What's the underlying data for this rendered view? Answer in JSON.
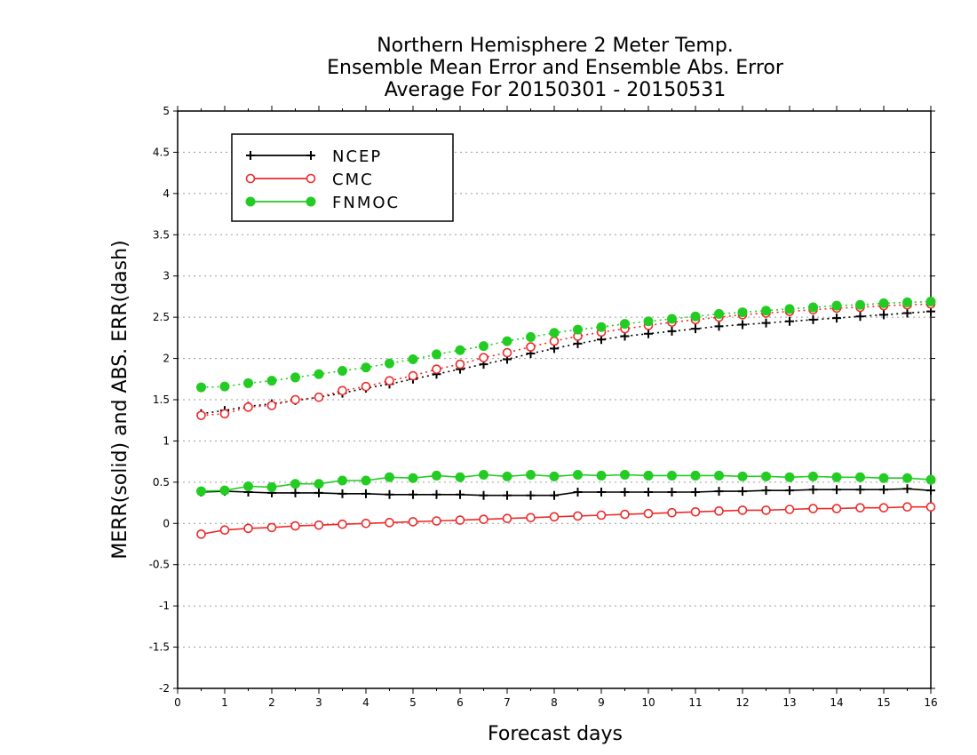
{
  "chart_data": {
    "type": "line",
    "title_lines": [
      "Northern Hemisphere 2 Meter Temp.",
      "Ensemble Mean Error and Ensemble Abs. Error",
      "Average For 20150301 - 20150531"
    ],
    "xlabel": "Forecast days",
    "ylabel": "MERR(solid) and ABS. ERR(dash)",
    "xlim": [
      0,
      16
    ],
    "ylim": [
      -2,
      5
    ],
    "xticks": [
      "0",
      "1",
      "2",
      "3",
      "4",
      "5",
      "6",
      "7",
      "8",
      "9",
      "10",
      "11",
      "12",
      "13",
      "14",
      "15",
      "16"
    ],
    "yticks": [
      "5",
      "4.5",
      "4",
      "3.5",
      "3",
      "2.5",
      "2",
      "1.5",
      "1",
      "0.5",
      "0",
      "-0.5",
      "-1",
      "-1.5",
      "-2"
    ],
    "grid": "horizontal dotted",
    "legend_position": "top-left",
    "x": [
      0.5,
      1,
      1.5,
      2,
      2.5,
      3,
      3.5,
      4,
      4.5,
      5,
      5.5,
      6,
      6.5,
      7,
      7.5,
      8,
      8.5,
      9,
      9.5,
      10,
      10.5,
      11,
      11.5,
      12,
      12.5,
      13,
      13.5,
      14,
      14.5,
      15,
      15.5,
      16
    ],
    "series": [
      {
        "name": "NCEP",
        "color": "#000000",
        "marker": "plus",
        "mean_error": [
          0.38,
          0.39,
          0.38,
          0.37,
          0.37,
          0.37,
          0.36,
          0.36,
          0.35,
          0.35,
          0.35,
          0.35,
          0.34,
          0.34,
          0.34,
          0.34,
          0.38,
          0.38,
          0.38,
          0.38,
          0.38,
          0.38,
          0.39,
          0.39,
          0.4,
          0.4,
          0.41,
          0.41,
          0.41,
          0.41,
          0.42,
          0.4
        ],
        "abs_error": [
          1.33,
          1.37,
          1.42,
          1.45,
          1.49,
          1.53,
          1.58,
          1.64,
          1.69,
          1.75,
          1.81,
          1.87,
          1.93,
          1.99,
          2.06,
          2.12,
          2.18,
          2.23,
          2.27,
          2.3,
          2.33,
          2.36,
          2.39,
          2.41,
          2.43,
          2.45,
          2.47,
          2.49,
          2.51,
          2.53,
          2.55,
          2.57
        ]
      },
      {
        "name": "CMC",
        "color": "#ee2a2a",
        "marker": "open-circle",
        "mean_error": [
          -0.13,
          -0.08,
          -0.06,
          -0.05,
          -0.03,
          -0.02,
          -0.01,
          0.0,
          0.01,
          0.02,
          0.03,
          0.04,
          0.05,
          0.06,
          0.07,
          0.08,
          0.09,
          0.1,
          0.11,
          0.12,
          0.13,
          0.14,
          0.15,
          0.16,
          0.16,
          0.17,
          0.18,
          0.18,
          0.19,
          0.19,
          0.2,
          0.2
        ],
        "abs_error": [
          1.31,
          1.33,
          1.41,
          1.43,
          1.5,
          1.53,
          1.61,
          1.66,
          1.73,
          1.79,
          1.87,
          1.93,
          2.01,
          2.07,
          2.14,
          2.21,
          2.27,
          2.32,
          2.36,
          2.4,
          2.44,
          2.47,
          2.5,
          2.53,
          2.55,
          2.57,
          2.59,
          2.61,
          2.62,
          2.64,
          2.65,
          2.66
        ]
      },
      {
        "name": "FNMOC",
        "color": "#22cc22",
        "marker": "filled-circle",
        "mean_error": [
          0.39,
          0.4,
          0.45,
          0.44,
          0.48,
          0.48,
          0.52,
          0.52,
          0.56,
          0.55,
          0.58,
          0.56,
          0.59,
          0.57,
          0.59,
          0.57,
          0.59,
          0.58,
          0.59,
          0.58,
          0.58,
          0.58,
          0.58,
          0.57,
          0.57,
          0.56,
          0.57,
          0.56,
          0.56,
          0.55,
          0.55,
          0.53
        ],
        "abs_error": [
          1.65,
          1.66,
          1.7,
          1.73,
          1.77,
          1.81,
          1.85,
          1.89,
          1.94,
          1.99,
          2.05,
          2.1,
          2.15,
          2.21,
          2.26,
          2.31,
          2.35,
          2.38,
          2.42,
          2.45,
          2.48,
          2.51,
          2.54,
          2.56,
          2.58,
          2.6,
          2.62,
          2.64,
          2.65,
          2.67,
          2.68,
          2.69
        ]
      }
    ]
  }
}
